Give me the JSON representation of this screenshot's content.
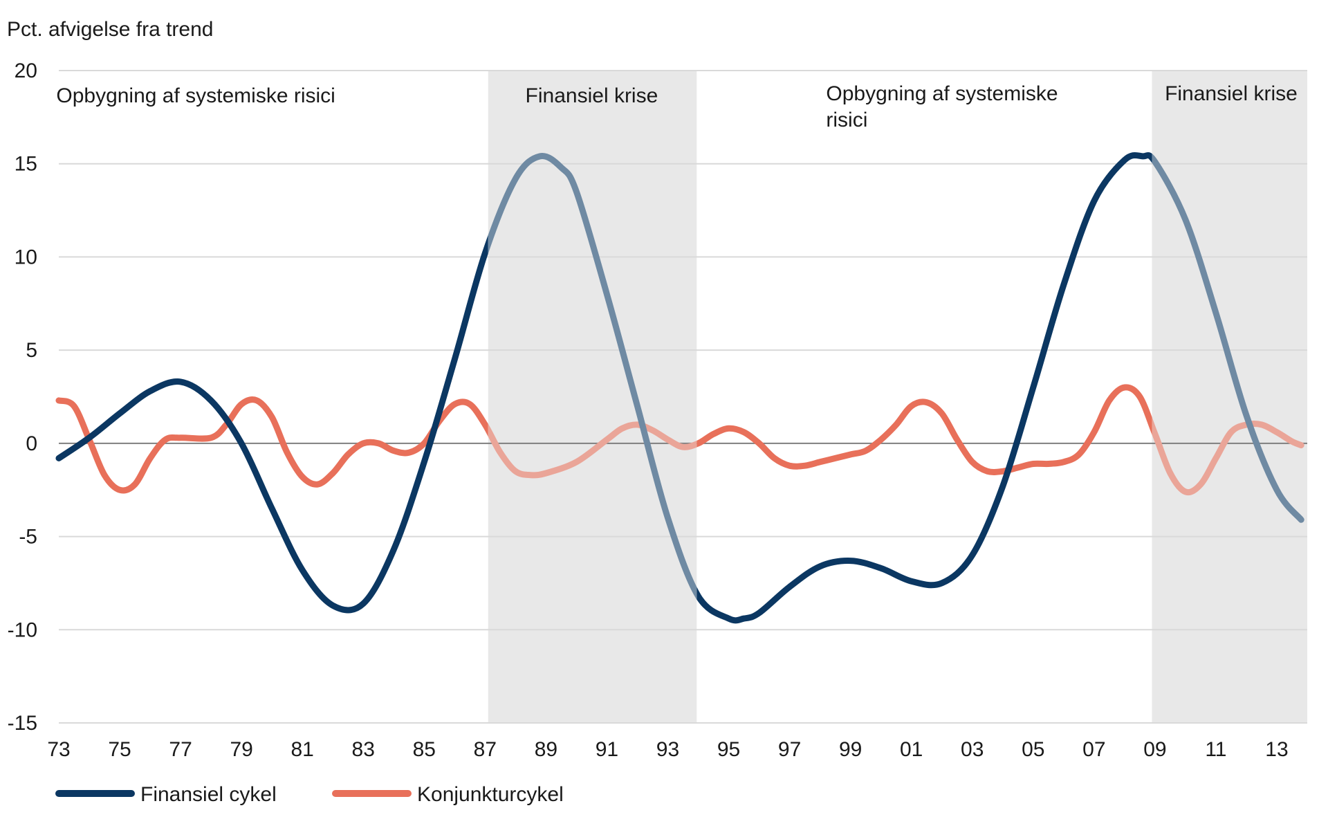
{
  "chart_data": {
    "type": "line",
    "ylabel": "Pct. afvigelse fra trend",
    "ylim": [
      -15,
      20
    ],
    "yticks": [
      20,
      15,
      10,
      5,
      0,
      -5,
      -10,
      -15
    ],
    "xlim": [
      1973,
      2014
    ],
    "xticks": [
      {
        "value": 1973,
        "label": "73"
      },
      {
        "value": 1975,
        "label": "75"
      },
      {
        "value": 1977,
        "label": "77"
      },
      {
        "value": 1979,
        "label": "79"
      },
      {
        "value": 1981,
        "label": "81"
      },
      {
        "value": 1983,
        "label": "83"
      },
      {
        "value": 1985,
        "label": "85"
      },
      {
        "value": 1987,
        "label": "87"
      },
      {
        "value": 1989,
        "label": "89"
      },
      {
        "value": 1991,
        "label": "91"
      },
      {
        "value": 1993,
        "label": "93"
      },
      {
        "value": 1995,
        "label": "95"
      },
      {
        "value": 1997,
        "label": "97"
      },
      {
        "value": 1999,
        "label": "99"
      },
      {
        "value": 2001,
        "label": "01"
      },
      {
        "value": 2003,
        "label": "03"
      },
      {
        "value": 2005,
        "label": "05"
      },
      {
        "value": 2007,
        "label": "07"
      },
      {
        "value": 2009,
        "label": "09"
      },
      {
        "value": 2011,
        "label": "11"
      },
      {
        "value": 2013,
        "label": "13"
      }
    ],
    "grid": true,
    "legend_position": "bottom-left",
    "shaded_periods": [
      {
        "start": 1987.1,
        "end": 1993.95,
        "label": "Finansiel krise"
      },
      {
        "start": 2008.9,
        "end": 2014,
        "label": "Finansiel krise"
      }
    ],
    "period_annotations": [
      {
        "x": 1977.5,
        "y": 18.3,
        "lines": [
          "Opbygning af systemiske risici"
        ]
      },
      {
        "x": 1990.5,
        "y": 18.3,
        "lines": [
          "Finansiel krise"
        ]
      },
      {
        "x": 1998.2,
        "y": 18.4,
        "lines": [
          "Opbygning af systemiske",
          "risici"
        ]
      },
      {
        "x": 2011.5,
        "y": 18.4,
        "lines": [
          "Finansiel krise"
        ]
      }
    ],
    "series": [
      {
        "name": "Finansiel cykel",
        "color": "#0b3762",
        "shaded_color": "#6f8aa3",
        "x": [
          1973,
          1974,
          1975,
          1976,
          1977,
          1978,
          1979,
          1980,
          1981,
          1982,
          1983,
          1984,
          1985,
          1986,
          1987,
          1988,
          1988.8,
          1989.5,
          1990,
          1991,
          1992,
          1993,
          1994,
          1995,
          1995.5,
          1996,
          1997,
          1998,
          1999,
          2000,
          2001,
          2002,
          2003,
          2004,
          2005,
          2006,
          2007,
          2008,
          2008.6,
          2009,
          2010,
          2011,
          2012,
          2013,
          2013.8
        ],
        "values": [
          -0.8,
          0.3,
          1.6,
          2.8,
          3.3,
          2.3,
          0.0,
          -3.5,
          -6.8,
          -8.7,
          -8.6,
          -5.7,
          -1.0,
          4.5,
          10.2,
          14.2,
          15.4,
          14.8,
          13.5,
          8.0,
          2.0,
          -4.0,
          -8.2,
          -9.4,
          -9.4,
          -9.1,
          -7.7,
          -6.6,
          -6.3,
          -6.7,
          -7.4,
          -7.5,
          -6.0,
          -2.3,
          3.0,
          8.5,
          13.0,
          15.2,
          15.4,
          15.1,
          12.0,
          7.0,
          1.5,
          -2.5,
          -4.1
        ]
      },
      {
        "name": "Konjunkturcykel",
        "color": "#e8705a",
        "shaded_color": "#eaa598",
        "x": [
          1973,
          1973.5,
          1974,
          1974.5,
          1975,
          1975.5,
          1976,
          1976.5,
          1977,
          1978,
          1978.5,
          1979,
          1979.5,
          1980,
          1980.5,
          1981,
          1981.5,
          1982,
          1982.5,
          1983,
          1983.5,
          1984,
          1984.5,
          1985,
          1985.5,
          1986,
          1986.5,
          1987,
          1987.5,
          1988,
          1988.5,
          1989,
          1990,
          1991,
          1991.5,
          1992,
          1992.5,
          1993,
          1993.5,
          1994,
          1994.5,
          1995,
          1995.5,
          1996,
          1996.5,
          1997,
          1997.5,
          1998,
          1998.5,
          1999,
          1999.5,
          2000,
          2000.5,
          2001,
          2001.5,
          2002,
          2002.5,
          2003,
          2003.5,
          2004,
          2004.5,
          2005,
          2005.5,
          2006,
          2006.5,
          2007,
          2007.5,
          2008,
          2008.5,
          2009,
          2009.5,
          2010,
          2010.5,
          2011,
          2011.5,
          2012,
          2012.5,
          2013,
          2013.5,
          2013.8
        ],
        "values": [
          2.3,
          2.0,
          0.2,
          -1.7,
          -2.5,
          -2.2,
          -0.8,
          0.2,
          0.3,
          0.3,
          1.0,
          2.1,
          2.3,
          1.4,
          -0.5,
          -1.8,
          -2.2,
          -1.6,
          -0.6,
          0.0,
          0.0,
          -0.4,
          -0.5,
          0.0,
          1.2,
          2.1,
          2.1,
          1.0,
          -0.5,
          -1.5,
          -1.7,
          -1.6,
          -1.0,
          0.2,
          0.8,
          1.0,
          0.7,
          0.2,
          -0.2,
          0.0,
          0.5,
          0.8,
          0.6,
          0.0,
          -0.8,
          -1.2,
          -1.2,
          -1.0,
          -0.8,
          -0.6,
          -0.4,
          0.2,
          1.0,
          2.0,
          2.2,
          1.6,
          0.2,
          -1.0,
          -1.5,
          -1.5,
          -1.3,
          -1.1,
          -1.1,
          -1.0,
          -0.6,
          0.6,
          2.3,
          3.0,
          2.5,
          0.5,
          -1.6,
          -2.6,
          -2.2,
          -0.8,
          0.6,
          1.0,
          1.0,
          0.6,
          0.1,
          -0.1
        ]
      }
    ]
  }
}
